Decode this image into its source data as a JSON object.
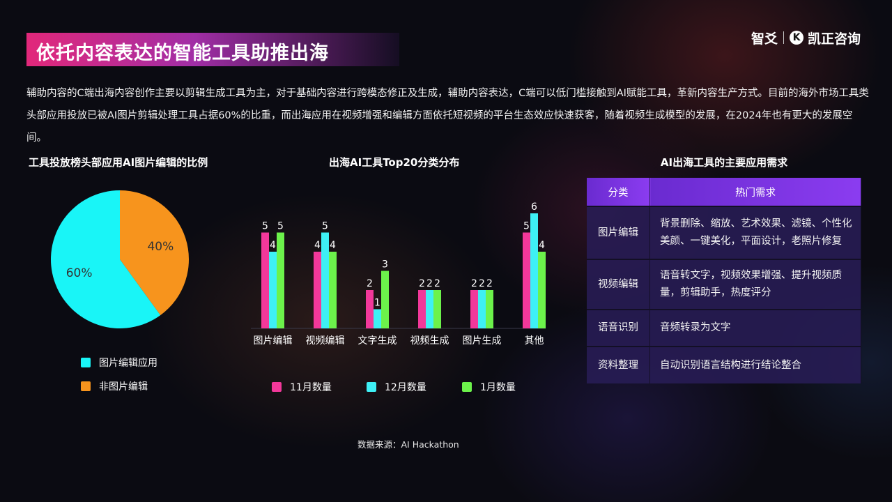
{
  "header": {
    "title": "依托内容表达的智能工具助推出海",
    "logo_left": "智爻",
    "logo_right": "凯正咨询",
    "logo_mark": "K"
  },
  "intro": "辅助内容的C端出海内容创作主要以剪辑生成工具为主，对于基础内容进行跨模态修正及生成，辅助内容表达，C端可以低门槛接触到AI赋能工具，革新内容生产方式。目前的海外市场工具类头部应用投放已被AI图片剪辑处理工具占据60%的比重，而出海应用在视频增强和编辑方面依托短视频的平台生态效应快速获客，随着视频生成模型的发展，在2024年也有更大的发展空间。",
  "chart_data": [
    {
      "type": "pie",
      "title": "工具投放榜头部应用AI图片编辑的比例",
      "slices": [
        {
          "label": "图片编辑应用",
          "value": 60,
          "display": "60%",
          "color": "#19f5f7"
        },
        {
          "label": "非图片编辑",
          "value": 40,
          "display": "40%",
          "color": "#f7941d"
        }
      ],
      "legend_position": "bottom"
    },
    {
      "type": "bar",
      "title": "出海AI工具Top20分类分布",
      "categories": [
        "图片编辑",
        "视频编辑",
        "文字生成",
        "视频生成",
        "图片生成",
        "其他"
      ],
      "series": [
        {
          "name": "11月数量",
          "values": [
            5,
            4,
            2,
            2,
            2,
            5
          ],
          "color": "#f2389a"
        },
        {
          "name": "12月数量",
          "values": [
            4,
            5,
            1,
            2,
            2,
            6
          ],
          "color": "#3ef0f5"
        },
        {
          "name": "1月数量",
          "values": [
            5,
            4,
            3,
            2,
            2,
            4
          ],
          "color": "#6cf24b"
        }
      ],
      "ylim": [
        0,
        6
      ],
      "grid": false,
      "legend_position": "bottom"
    },
    {
      "type": "table",
      "title": "AI出海工具的主要应用需求",
      "columns": [
        "分类",
        "热门需求"
      ],
      "rows": [
        [
          "图片编辑",
          "背景删除、缩放、艺术效果、滤镜、个性化美颜、一键美化，平面设计，老照片修复"
        ],
        [
          "视频编辑",
          "语音转文字，视频效果增强、提升视频质量，剪辑助手，热度评分"
        ],
        [
          "语音识别",
          "音频转录为文字"
        ],
        [
          "资料整理",
          "自动识别语言结构进行结论整合"
        ]
      ]
    }
  ],
  "source": "数据来源：AI Hackathon"
}
